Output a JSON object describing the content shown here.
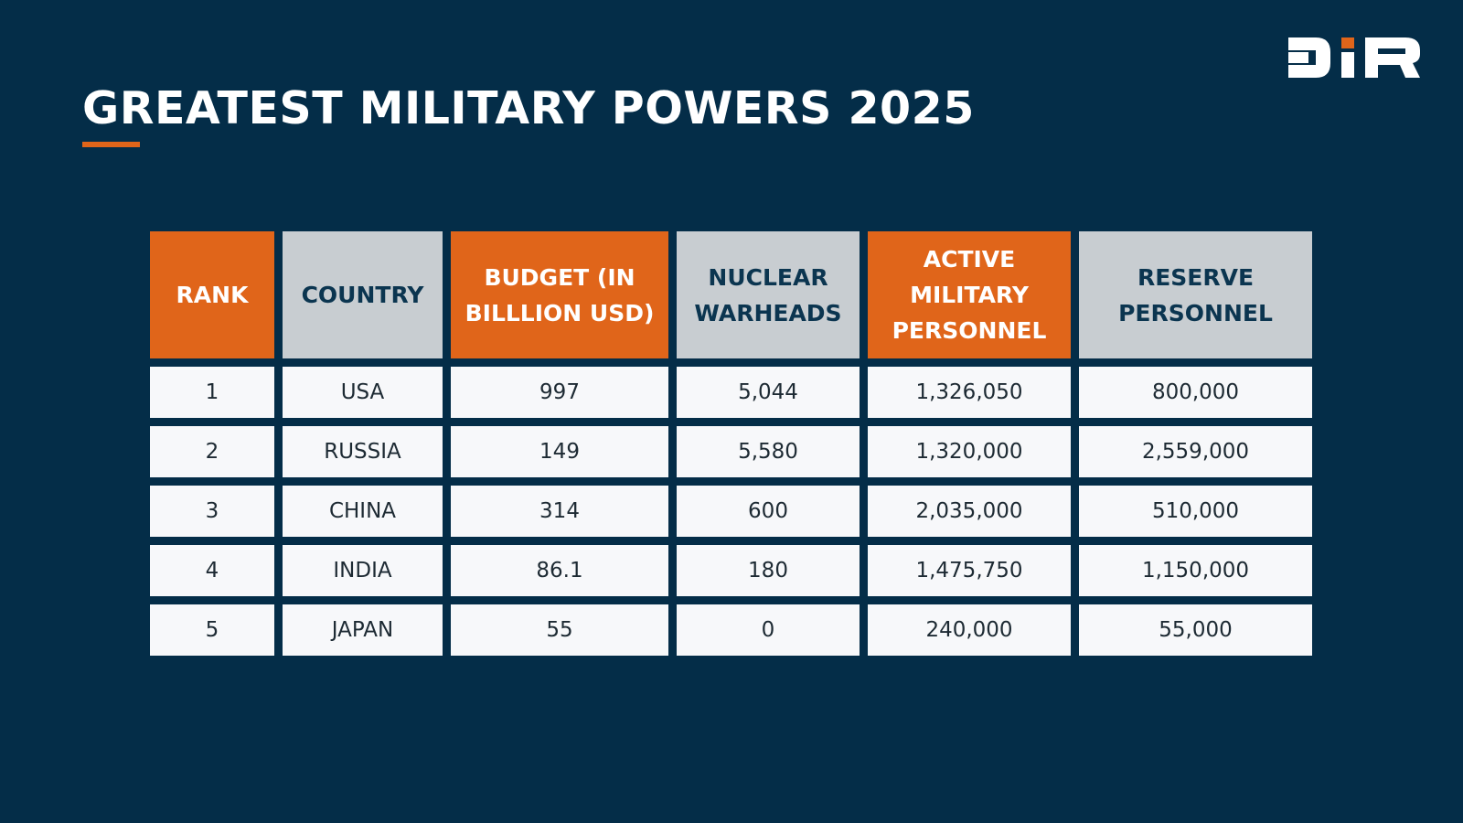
{
  "title": "GREATEST MILITARY POWERS 2025",
  "logo": {
    "text": "DIR",
    "colors": {
      "main": "#ffffff",
      "accent": "#e0651a"
    }
  },
  "colors": {
    "background": "#042d48",
    "accent": "#e0651a",
    "header_gray": "#c8cdd1"
  },
  "table": {
    "headers": [
      "RANK",
      "COUNTRY",
      "BUDGET (IN BILLLION USD)",
      "NUCLEAR WARHEADS",
      "ACTIVE MILITARY PERSONNEL",
      "RESERVE PERSONNEL"
    ],
    "rows": [
      [
        "1",
        "USA",
        "997",
        "5,044",
        "1,326,050",
        "800,000"
      ],
      [
        "2",
        "RUSSIA",
        "149",
        "5,580",
        "1,320,000",
        "2,559,000"
      ],
      [
        "3",
        "CHINA",
        "314",
        "600",
        "2,035,000",
        "510,000"
      ],
      [
        "4",
        "INDIA",
        "86.1",
        "180",
        "1,475,750",
        "1,150,000"
      ],
      [
        "5",
        "JAPAN",
        "55",
        "0",
        "240,000",
        "55,000"
      ]
    ]
  }
}
